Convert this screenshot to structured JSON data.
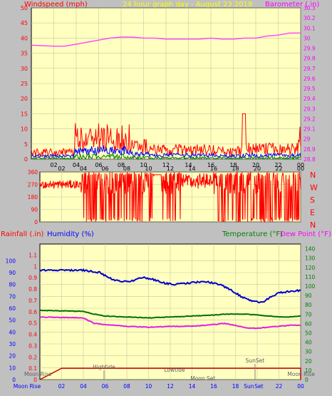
{
  "header": {
    "left_title": "Windspeed (mph)",
    "center_title": "24 hour graph day - August 23 2019",
    "right_title": "Barometer (.in)"
  },
  "labels": {
    "rainfall": "Rainfall (.in)",
    "humidity": "Humidity (%)",
    "temperature": "Temperature (°F)",
    "dewpoint": "Dew Point (°F)"
  },
  "colors": {
    "wind_gust": "#ff0000",
    "wind_avg": "#0000ff",
    "wind_low": "#008000",
    "barometer": "#ff40ff",
    "direction": "#ff0000",
    "humidity": "#0000cc",
    "temperature": "#007000",
    "dewpoint": "#e020e0",
    "rainfall": "#cc0000",
    "plot_bg": "#ffffc0"
  },
  "chart_data": [
    {
      "type": "line",
      "name": "wind-barometer",
      "x_ticks": [
        "02",
        "04",
        "06",
        "08",
        "10",
        "12",
        "14",
        "16",
        "18",
        "20",
        "22",
        "00"
      ],
      "left_axis": {
        "ylim": [
          0,
          50
        ],
        "ticks": [
          0,
          5,
          10,
          15,
          20,
          25,
          30,
          35,
          40,
          45,
          50
        ]
      },
      "right_axis": {
        "ylim": [
          28.8,
          30.3
        ],
        "ticks": [
          "28.8",
          "28.9",
          "29",
          "29.1",
          "29.2",
          "29.3",
          "29.4",
          "29.5",
          "29.6",
          "29.7",
          "29.8",
          "29.9",
          "30",
          "30.1",
          "30.2",
          "30.3"
        ]
      },
      "series": [
        {
          "axis": "right",
          "points": [
            [
              0,
              29.93
            ],
            [
              2,
              29.92
            ],
            [
              3,
              29.92
            ],
            [
              4,
              29.94
            ],
            [
              5,
              29.96
            ],
            [
              6,
              29.98
            ],
            [
              7,
              30.0
            ],
            [
              8,
              30.01
            ],
            [
              9,
              30.01
            ],
            [
              10,
              30.0
            ],
            [
              11,
              30.0
            ],
            [
              12,
              29.99
            ],
            [
              13,
              29.99
            ],
            [
              14,
              29.99
            ],
            [
              15,
              29.99
            ],
            [
              16,
              30.0
            ],
            [
              17,
              29.99
            ],
            [
              18,
              29.99
            ],
            [
              19,
              30.0
            ],
            [
              20,
              30.0
            ],
            [
              21,
              30.02
            ],
            [
              22,
              30.03
            ],
            [
              23,
              30.05
            ],
            [
              24,
              30.05
            ]
          ]
        }
      ],
      "wind_profile": [
        {
          "from": 0,
          "to": 3.8,
          "gust": 2.5,
          "avg": 1.2
        },
        {
          "from": 3.8,
          "to": 8.8,
          "gust": 8.5,
          "avg": 3.5
        },
        {
          "from": 8.8,
          "to": 10.5,
          "gust": 5.0,
          "avg": 2.0
        },
        {
          "from": 10.5,
          "to": 16.5,
          "gust": 3.5,
          "avg": 1.5
        },
        {
          "from": 16.5,
          "to": 18.8,
          "gust": 3.0,
          "avg": 1.2
        },
        {
          "from": 18.8,
          "to": 24,
          "gust": 4.0,
          "avg": 1.5
        }
      ],
      "wind_max_gust": 15
    },
    {
      "type": "line",
      "name": "wind-direction",
      "ylim": [
        0,
        360
      ],
      "y_ticks": [
        0,
        45,
        90,
        135,
        180,
        225,
        270,
        315,
        360
      ],
      "compass": [
        "N",
        "W",
        "S",
        "E",
        "N"
      ],
      "x_ticks": [
        "02",
        "04",
        "06",
        "08",
        "10",
        "12",
        "14",
        "16",
        "18",
        "20",
        "22",
        "00"
      ]
    },
    {
      "type": "line",
      "name": "temp-humidity-rain",
      "x_ticks": [
        "02",
        "04",
        "06",
        "08",
        "10",
        "12",
        "14",
        "16",
        "18",
        "20",
        "22",
        "00"
      ],
      "humidity_axis": {
        "ylim": [
          0,
          100
        ],
        "ticks": [
          0,
          10,
          20,
          30,
          40,
          50,
          60,
          70,
          80,
          90,
          100
        ]
      },
      "rain_axis": {
        "ylim": [
          0,
          1.2
        ],
        "ticks": [
          "0",
          "0.1",
          "0.2",
          "0.3",
          "0.4",
          "0.5",
          "0.6",
          "0.7",
          "0.8",
          "0.9",
          "1",
          "1.1"
        ]
      },
      "temp_axis": {
        "ylim": [
          0,
          150
        ],
        "ticks": [
          0,
          10,
          20,
          30,
          40,
          50,
          60,
          70,
          80,
          90,
          100,
          110,
          120,
          130,
          140
        ]
      },
      "series": [
        {
          "axis": "humidity",
          "points": [
            [
              0,
              92
            ],
            [
              4,
              92
            ],
            [
              5.5,
              90
            ],
            [
              6.5,
              85
            ],
            [
              7.5,
              82
            ],
            [
              8.5,
              83
            ],
            [
              9.5,
              86
            ],
            [
              10.5,
              84
            ],
            [
              11.5,
              81
            ],
            [
              12.5,
              80
            ],
            [
              13.5,
              81
            ],
            [
              14.5,
              82
            ],
            [
              15.5,
              82
            ],
            [
              16.5,
              80
            ],
            [
              17.5,
              76
            ],
            [
              18.5,
              70
            ],
            [
              19.5,
              66
            ],
            [
              20.5,
              65
            ],
            [
              21,
              68
            ],
            [
              22,
              73
            ],
            [
              23,
              74
            ],
            [
              24,
              75
            ]
          ]
        },
        {
          "axis": "temp",
          "points": [
            [
              0,
              74
            ],
            [
              4,
              73
            ],
            [
              5,
              70
            ],
            [
              6,
              68
            ],
            [
              8,
              67
            ],
            [
              10,
              66
            ],
            [
              12,
              67
            ],
            [
              14,
              68
            ],
            [
              16,
              69
            ],
            [
              17,
              70
            ],
            [
              18,
              70
            ],
            [
              19,
              70
            ],
            [
              20,
              69
            ],
            [
              21,
              68
            ],
            [
              22,
              67
            ],
            [
              23,
              67
            ],
            [
              24,
              68
            ]
          ]
        },
        {
          "axis": "temp",
          "points": [
            [
              0,
              67
            ],
            [
              4,
              66
            ],
            [
              5,
              60
            ],
            [
              6,
              59
            ],
            [
              8,
              57
            ],
            [
              10,
              56
            ],
            [
              12,
              57
            ],
            [
              14,
              57
            ],
            [
              15,
              58
            ],
            [
              16,
              59
            ],
            [
              17,
              60
            ],
            [
              18,
              58
            ],
            [
              19,
              55
            ],
            [
              20,
              55
            ],
            [
              21,
              56
            ],
            [
              22,
              57
            ],
            [
              23,
              58
            ],
            [
              24,
              58
            ]
          ]
        },
        {
          "axis": "rain",
          "points": [
            [
              0,
              0
            ],
            [
              1,
              0.05
            ],
            [
              2,
              0.1
            ],
            [
              24,
              0.1
            ],
            [
              24,
              0
            ]
          ]
        }
      ],
      "annotations": [
        {
          "text": "Moon Rise",
          "x": 0
        },
        {
          "text": "Hightide",
          "x": 5.9
        },
        {
          "text": "Lowtide",
          "x": 12.4
        },
        {
          "text": "Moon Set",
          "x": 15
        },
        {
          "text": "SunSet",
          "x": 19.8
        },
        {
          "text": "Moon Rise",
          "x": 24
        }
      ],
      "bottom_axis": [
        "Moon Rise",
        "02",
        "04",
        "06",
        "08",
        "10",
        "12",
        "14",
        "16",
        "18",
        "Sun",
        "Set",
        "22",
        "00"
      ]
    }
  ]
}
